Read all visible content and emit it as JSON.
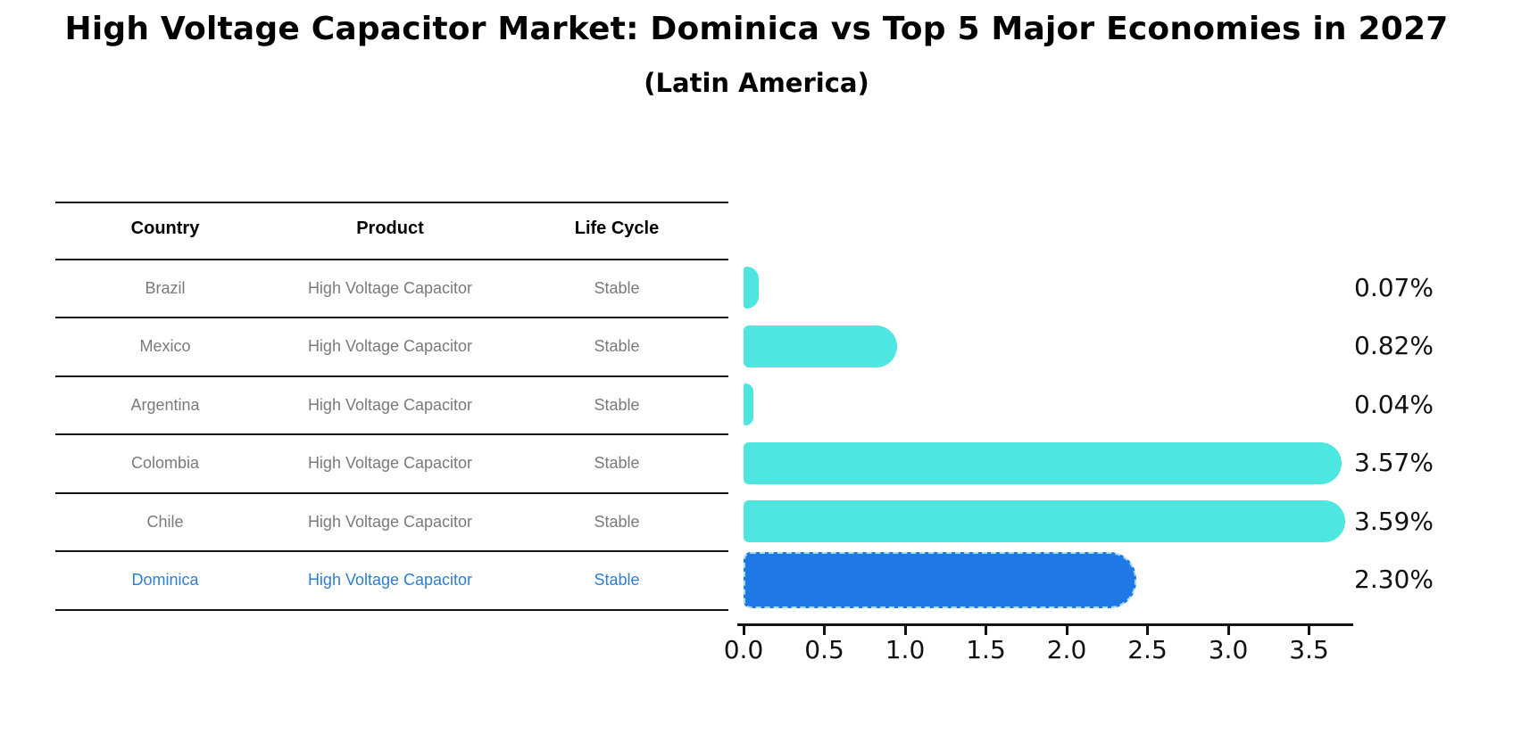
{
  "title": "High Voltage Capacitor Market: Dominica vs Top 5 Major Economies in 2027",
  "subtitle": "(Latin America)",
  "table": {
    "headers": [
      "Country",
      "Product",
      "Life Cycle"
    ],
    "rows": [
      {
        "country": "Brazil",
        "product": "High Voltage Capacitor",
        "life_cycle": "Stable",
        "highlight": false
      },
      {
        "country": "Mexico",
        "product": "High Voltage Capacitor",
        "life_cycle": "Stable",
        "highlight": false
      },
      {
        "country": "Argentina",
        "product": "High Voltage Capacitor",
        "life_cycle": "Stable",
        "highlight": false
      },
      {
        "country": "Colombia",
        "product": "High Voltage Capacitor",
        "life_cycle": "Stable",
        "highlight": false
      },
      {
        "country": "Chile",
        "product": "High Voltage Capacitor",
        "life_cycle": "Stable",
        "highlight": false
      },
      {
        "country": "Dominica",
        "product": "High Voltage Capacitor",
        "life_cycle": "Stable",
        "highlight": true
      }
    ]
  },
  "chart_data": {
    "type": "bar",
    "orientation": "horizontal",
    "title": "High Voltage Capacitor Market: Dominica vs Top 5 Major Economies in 2027",
    "subtitle": "(Latin America)",
    "categories": [
      "Brazil",
      "Mexico",
      "Argentina",
      "Colombia",
      "Chile",
      "Dominica"
    ],
    "values": [
      0.07,
      0.82,
      0.04,
      3.57,
      3.59,
      2.3
    ],
    "value_labels": [
      "0.07%",
      "0.82%",
      "0.04%",
      "3.57%",
      "3.59%",
      "2.30%"
    ],
    "xlim": [
      0,
      3.77
    ],
    "xticks": [
      0.0,
      0.5,
      1.0,
      1.5,
      2.0,
      2.5,
      3.0,
      3.5
    ],
    "xtick_labels": [
      "0.0",
      "0.5",
      "1.0",
      "1.5",
      "2.0",
      "2.5",
      "3.0",
      "3.5"
    ],
    "grid": false,
    "legend": false,
    "bar_color": "#4DE6E0",
    "highlight_bar_color": "#1E78E6",
    "highlight_border_color": "#A9DCF7",
    "highlight_index": 5
  },
  "colors": {
    "background": "#FFFFFF",
    "title_text": "#000000",
    "table_header_text": "#000000",
    "table_cell_text": "#7A7A7A",
    "highlight_text": "#2E7ECF",
    "table_line": "#141414",
    "axis_line": "#141414",
    "value_label_text": "#111111",
    "tick_label_text": "#111111"
  }
}
